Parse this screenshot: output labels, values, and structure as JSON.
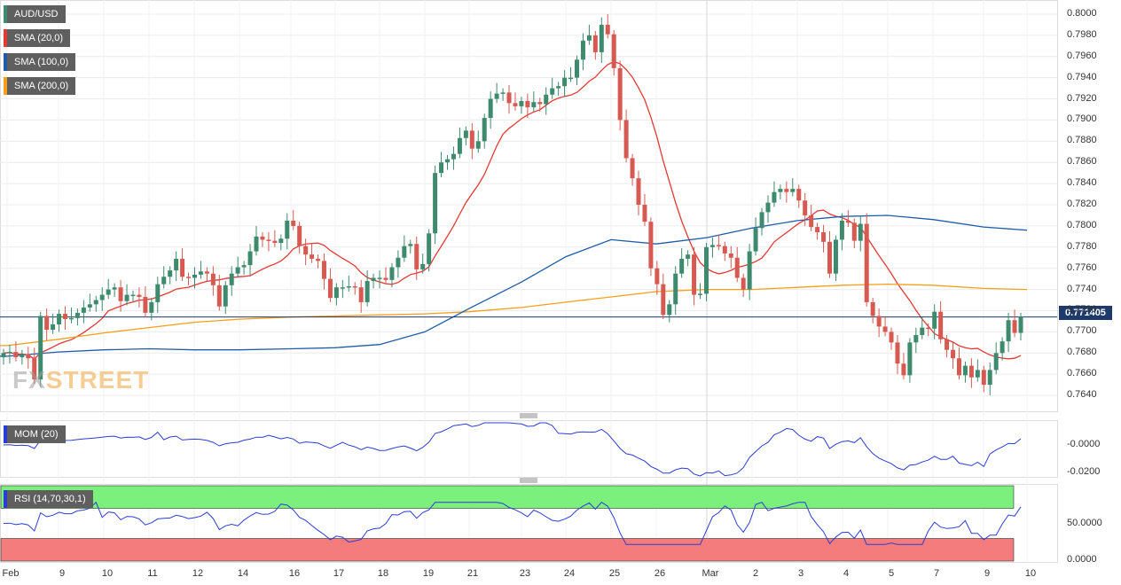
{
  "labels": {
    "pair": "AUD/USD",
    "sma20": "SMA (20,0)",
    "sma100": "SMA (100,0)",
    "sma200": "SMA (200,0)",
    "mom": "MOM (20)",
    "rsi": "RSI (14,70,30,1)",
    "last_price": "0.771405",
    "logo_fx": "FX",
    "logo_street": "STREET"
  },
  "colors": {
    "up": "#3e8a6e",
    "down": "#d75a52",
    "sma20": "#e53935",
    "sma100": "#1f5ca8",
    "sma200": "#f59f1a",
    "rsi_overbought": "#7cf07c",
    "rsi_oversold": "#f47c7c",
    "indicator_line": "#2a3cd6",
    "last_price": "#1d3a6b"
  },
  "chart_data": {
    "type": "candlestick",
    "symbol": "AUD/USD",
    "y_range": [
      0.7625,
      0.801
    ],
    "y_ticks": [
      "0.8000",
      "0.7980",
      "0.7960",
      "0.7940",
      "0.7920",
      "0.7900",
      "0.7880",
      "0.7860",
      "0.7840",
      "0.7820",
      "0.7800",
      "0.7780",
      "0.7760",
      "0.7740",
      "0.7720",
      "0.7700",
      "0.7680",
      "0.7660",
      "0.7640"
    ],
    "x_ticks": [
      "Feb",
      "9",
      "10",
      "11",
      "12",
      "14",
      "16",
      "17",
      "18",
      "19",
      "21",
      "23",
      "24",
      "25",
      "26",
      "Mar",
      "2",
      "3",
      "4",
      "5",
      "7",
      "9",
      "10"
    ],
    "last_price": 0.771405,
    "close": [
      0.768,
      0.7681,
      0.7676,
      0.7679,
      0.7675,
      0.7655,
      0.7715,
      0.7702,
      0.7707,
      0.7717,
      0.7712,
      0.7713,
      0.7718,
      0.7723,
      0.7726,
      0.773,
      0.7735,
      0.774,
      0.7742,
      0.7729,
      0.7735,
      0.7735,
      0.7733,
      0.7718,
      0.7728,
      0.7745,
      0.7752,
      0.7758,
      0.7769,
      0.7752,
      0.7751,
      0.7754,
      0.7757,
      0.7755,
      0.7744,
      0.7724,
      0.7744,
      0.7755,
      0.7761,
      0.7763,
      0.7776,
      0.779,
      0.7787,
      0.7786,
      0.7784,
      0.7788,
      0.7805,
      0.78,
      0.7781,
      0.7773,
      0.7769,
      0.7767,
      0.775,
      0.7732,
      0.7742,
      0.7742,
      0.7743,
      0.7742,
      0.7728,
      0.7748,
      0.7751,
      0.7751,
      0.7749,
      0.7761,
      0.777,
      0.7781,
      0.7783,
      0.7759,
      0.7764,
      0.7793,
      0.785,
      0.786,
      0.7863,
      0.7868,
      0.7883,
      0.789,
      0.7873,
      0.788,
      0.7902,
      0.792,
      0.7925,
      0.7926,
      0.7916,
      0.7913,
      0.7918,
      0.7912,
      0.7917,
      0.7915,
      0.7924,
      0.793,
      0.7932,
      0.794,
      0.794,
      0.7957,
      0.7975,
      0.798,
      0.7964,
      0.799,
      0.7981,
      0.7949,
      0.79,
      0.7864,
      0.7845,
      0.782,
      0.7804,
      0.776,
      0.7745,
      0.7716,
      0.7726,
      0.7755,
      0.7769,
      0.7773,
      0.7735,
      0.7736,
      0.778,
      0.7782,
      0.7781,
      0.7774,
      0.777,
      0.7751,
      0.774,
      0.7776,
      0.7798,
      0.7813,
      0.7822,
      0.7832,
      0.7835,
      0.7832,
      0.7835,
      0.7824,
      0.781,
      0.7799,
      0.7794,
      0.7785,
      0.7755,
      0.7787,
      0.7805,
      0.7803,
      0.7786,
      0.7802,
      0.7728,
      0.7715,
      0.7705,
      0.77,
      0.769,
      0.767,
      0.7659,
      0.769,
      0.7697,
      0.7704,
      0.7703,
      0.7719,
      0.7693,
      0.7683,
      0.7675,
      0.7659,
      0.7668,
      0.7657,
      0.7664,
      0.765,
      0.7664,
      0.768,
      0.7691,
      0.7711,
      0.7699,
      0.7714
    ],
    "sma200_at_ticks": [
      0.7687,
      0.7693,
      0.7699,
      0.7704,
      0.7709,
      0.7712,
      0.7714,
      0.7715,
      0.7716,
      0.7717,
      0.7719,
      0.7723,
      0.7728,
      0.7733,
      0.7738,
      0.774,
      0.774,
      0.7742,
      0.7744,
      0.7745,
      0.7744,
      0.7741,
      0.774
    ],
    "sma100_at_ticks": [
      0.7677,
      0.7681,
      0.7683,
      0.7684,
      0.7683,
      0.7683,
      0.7684,
      0.7685,
      0.7688,
      0.77,
      0.7722,
      0.7747,
      0.7771,
      0.7787,
      0.7783,
      0.7789,
      0.7798,
      0.7805,
      0.7809,
      0.781,
      0.7806,
      0.7799,
      0.7796
    ],
    "mom_ticks": [
      "-0.0000",
      "-0.0200"
    ],
    "rsi_ticks": [
      "50.0000",
      "0.0000"
    ],
    "rsi_levels": [
      70,
      30
    ]
  }
}
